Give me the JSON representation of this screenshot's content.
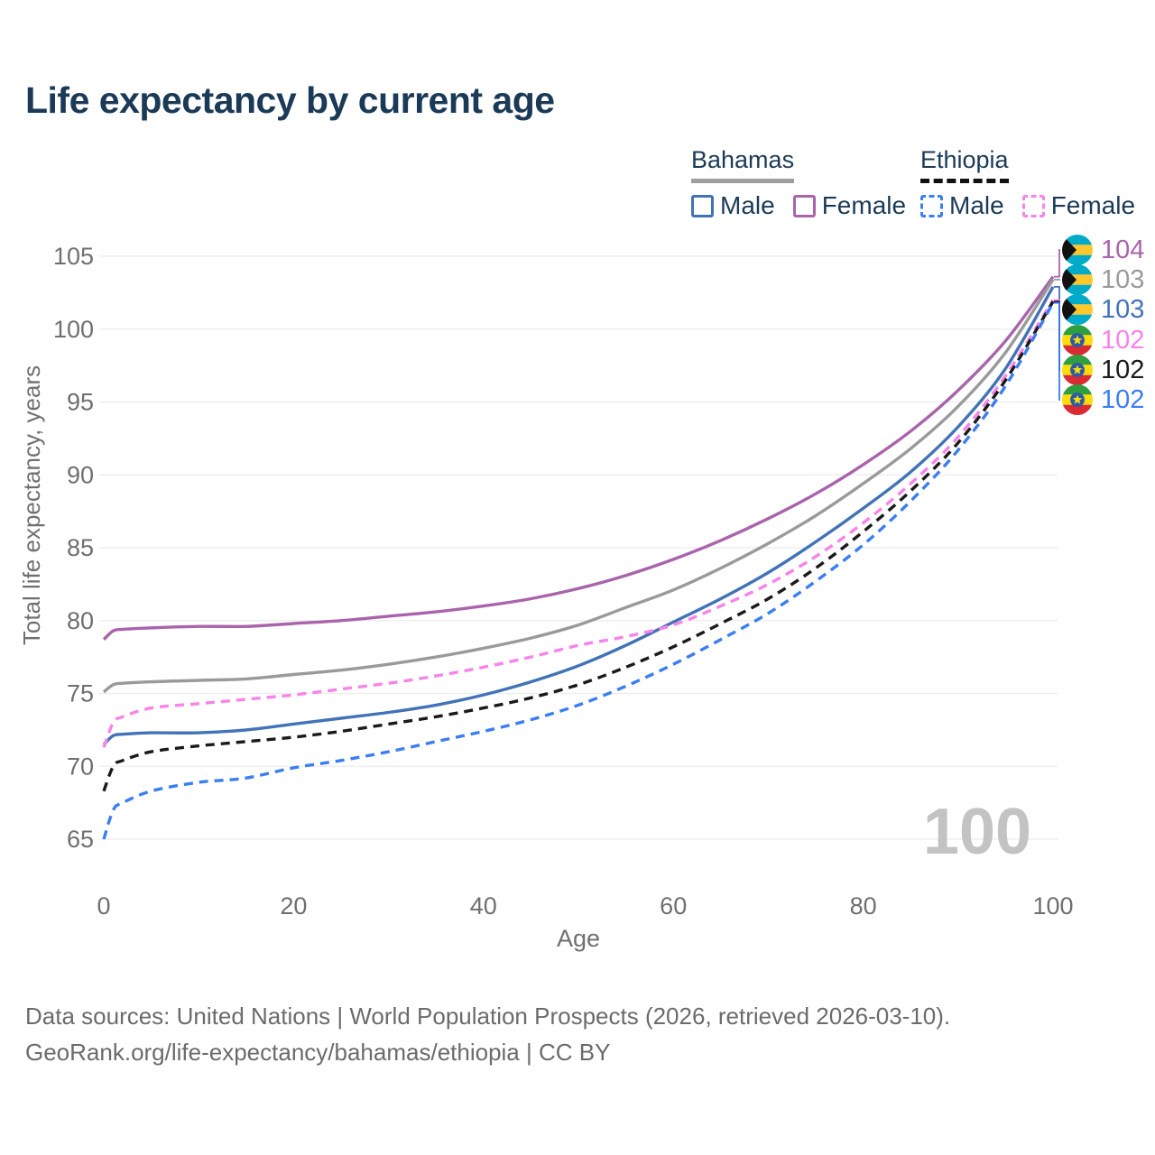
{
  "header": {
    "title": "Life expectancy by current age"
  },
  "legend": {
    "groups": [
      {
        "country": "Bahamas",
        "line_style": "solid",
        "items": [
          {
            "label": "Male"
          },
          {
            "label": "Female"
          }
        ]
      },
      {
        "country": "Ethiopia",
        "line_style": "dashed",
        "items": [
          {
            "label": "Male"
          },
          {
            "label": "Female"
          }
        ]
      }
    ]
  },
  "chart_data": {
    "type": "line",
    "title": "Life expectancy by current age",
    "xlabel": "Age",
    "ylabel": "Total life expectancy, years",
    "xlim": [
      0,
      100
    ],
    "ylim": [
      65,
      105
    ],
    "xticks": [
      0,
      20,
      40,
      60,
      80,
      100
    ],
    "yticks": [
      65,
      70,
      75,
      80,
      85,
      90,
      95,
      100,
      105
    ],
    "grid": "horizontal",
    "legend_position": "top-right",
    "watermark": "100",
    "ages": [
      0,
      1,
      2,
      5,
      10,
      15,
      20,
      25,
      30,
      35,
      40,
      45,
      50,
      55,
      60,
      65,
      70,
      75,
      80,
      85,
      90,
      95,
      100
    ],
    "series": [
      {
        "name": "Bahamas Female",
        "country": "Bahamas",
        "sex": "Female",
        "style": "solid",
        "color": "#a964ab",
        "end_label": "104",
        "values": [
          78.7,
          79.3,
          79.4,
          79.5,
          79.6,
          79.6,
          79.8,
          80.0,
          80.3,
          80.6,
          81.0,
          81.5,
          82.2,
          83.1,
          84.2,
          85.5,
          87.0,
          88.7,
          90.7,
          93.0,
          95.8,
          99.2,
          103.6
        ]
      },
      {
        "name": "Bahamas Both sexes",
        "country": "Bahamas",
        "sex": "Both",
        "style": "solid",
        "color": "#9a9a9a",
        "end_label": "103",
        "values": [
          75.1,
          75.6,
          75.7,
          75.8,
          75.9,
          76.0,
          76.3,
          76.6,
          77.0,
          77.5,
          78.1,
          78.8,
          79.7,
          80.9,
          82.1,
          83.6,
          85.3,
          87.2,
          89.4,
          91.8,
          94.7,
          98.4,
          103.4
        ]
      },
      {
        "name": "Bahamas Male",
        "country": "Bahamas",
        "sex": "Male",
        "style": "solid",
        "color": "#4273b8",
        "end_label": "103",
        "values": [
          71.5,
          72.1,
          72.2,
          72.3,
          72.3,
          72.5,
          72.9,
          73.3,
          73.7,
          74.2,
          74.9,
          75.8,
          76.9,
          78.3,
          79.9,
          81.5,
          83.3,
          85.4,
          87.7,
          90.2,
          93.3,
          97.3,
          102.9
        ]
      },
      {
        "name": "Ethiopia Female",
        "country": "Ethiopia",
        "sex": "Female",
        "style": "dashed",
        "color": "#f883ea",
        "end_label": "102",
        "values": [
          71.3,
          73.0,
          73.4,
          74.0,
          74.3,
          74.6,
          74.9,
          75.3,
          75.7,
          76.2,
          76.8,
          77.5,
          78.3,
          78.9,
          79.7,
          81.0,
          82.5,
          84.4,
          86.7,
          89.4,
          92.6,
          96.8,
          102.0
        ]
      },
      {
        "name": "Ethiopia Both sexes",
        "country": "Ethiopia",
        "sex": "Both",
        "style": "dashed",
        "color": "#1a1a1a",
        "end_label": "102",
        "values": [
          68.3,
          70.0,
          70.4,
          71.0,
          71.4,
          71.7,
          72.0,
          72.4,
          72.9,
          73.4,
          74.0,
          74.7,
          75.6,
          76.8,
          78.2,
          79.8,
          81.5,
          83.6,
          86.1,
          88.9,
          92.2,
          96.5,
          101.9
        ]
      },
      {
        "name": "Ethiopia Male",
        "country": "Ethiopia",
        "sex": "Male",
        "style": "dashed",
        "color": "#3b7ef2",
        "end_label": "102",
        "values": [
          65.0,
          67.0,
          67.5,
          68.3,
          68.9,
          69.2,
          69.9,
          70.4,
          71.0,
          71.7,
          72.4,
          73.2,
          74.2,
          75.5,
          77.0,
          78.7,
          80.5,
          82.7,
          85.2,
          88.2,
          91.7,
          96.1,
          101.8
        ]
      }
    ]
  },
  "end_labels": [
    {
      "value": "104",
      "color": "#a964ab",
      "flag": "bahamas"
    },
    {
      "value": "103",
      "color": "#9a9a9a",
      "flag": "bahamas"
    },
    {
      "value": "103",
      "color": "#4273b8",
      "flag": "bahamas"
    },
    {
      "value": "102",
      "color": "#f883ea",
      "flag": "ethiopia"
    },
    {
      "value": "102",
      "color": "#1a1a1a",
      "flag": "ethiopia"
    },
    {
      "value": "102",
      "color": "#3b7ef2",
      "flag": "ethiopia"
    }
  ],
  "colors": {
    "title_text": "#1b3a57",
    "axis_text": "#6f6f6f",
    "gridline": "#ececec",
    "watermark": "#c3c3c3",
    "footer_text": "#6b6b6b"
  },
  "footer": {
    "line1": "Data sources: United Nations | World Population Prospects (2026, retrieved 2026-03-10).",
    "line2": "GeoRank.org/life-expectancy/bahamas/ethiopia | CC BY"
  }
}
